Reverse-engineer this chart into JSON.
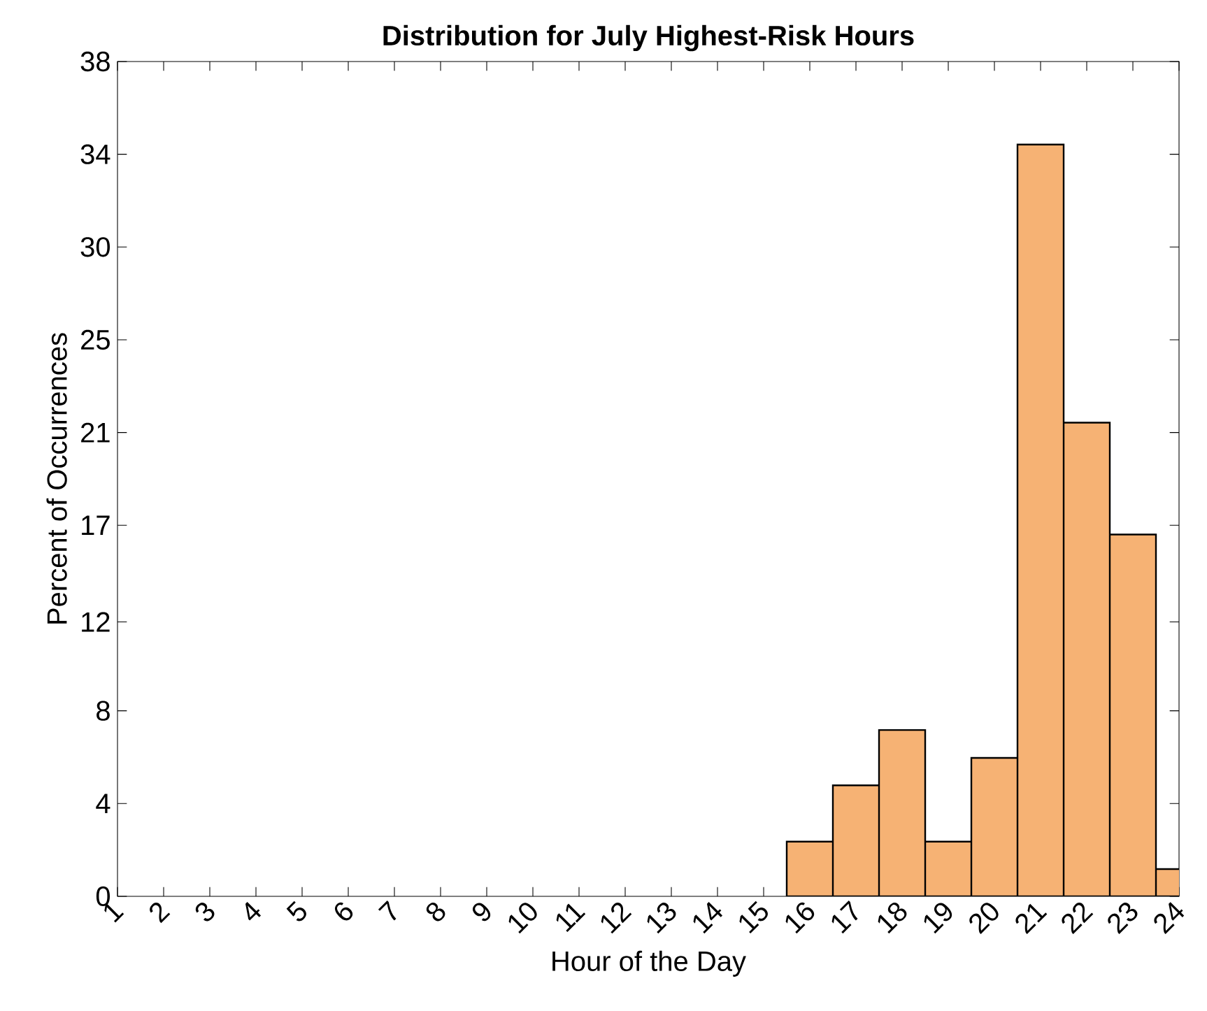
{
  "chart_data": {
    "type": "bar",
    "title": "Distribution for July Highest-Risk Hours",
    "xlabel": "Hour of the Day",
    "ylabel": "Percent of Occurrences",
    "x": [
      16,
      17,
      18,
      19,
      20,
      21,
      22,
      23,
      24
    ],
    "values": [
      2.49,
      5.05,
      7.57,
      2.49,
      6.3,
      34.22,
      21.56,
      16.47,
      1.24
    ],
    "color": "#f6b274",
    "xlim": [
      1,
      24
    ],
    "xticks": [
      1,
      2,
      3,
      4,
      5,
      6,
      7,
      8,
      9,
      10,
      11,
      12,
      13,
      14,
      15,
      16,
      17,
      18,
      19,
      20,
      21,
      22,
      23,
      24
    ],
    "ylim": [
      0,
      38
    ],
    "yticks": [
      0,
      {
        "value": 4.222,
        "label": "4"
      },
      {
        "value": 8.444,
        "label": "8"
      },
      {
        "value": 12.49,
        "label": "12"
      },
      {
        "value": 16.889,
        "label": "17"
      },
      {
        "value": 21.111,
        "label": "21"
      },
      {
        "value": 25.333,
        "label": "25"
      },
      {
        "value": 29.556,
        "label": "30"
      },
      {
        "value": 33.778,
        "label": "34"
      },
      38
    ],
    "orientation": "vertical"
  }
}
